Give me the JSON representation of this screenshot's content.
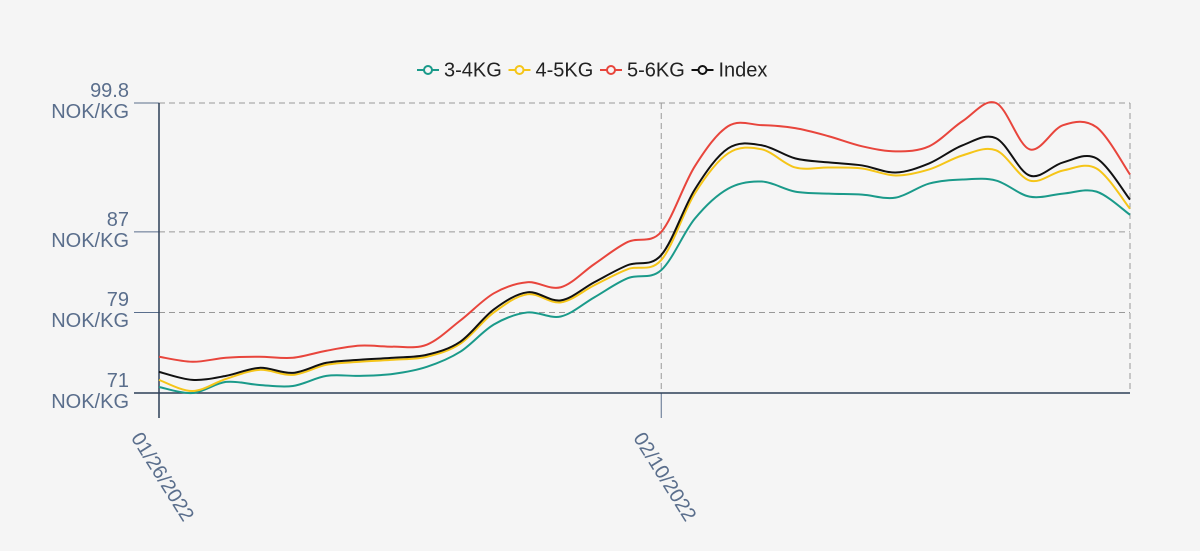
{
  "chart_data": {
    "type": "line",
    "x": [
      "2022-01-26",
      "2022-01-27",
      "2022-01-28",
      "2022-01-29",
      "2022-01-30",
      "2022-01-31",
      "2022-02-01",
      "2022-02-02",
      "2022-02-03",
      "2022-02-04",
      "2022-02-05",
      "2022-02-06",
      "2022-02-07",
      "2022-02-08",
      "2022-02-09",
      "2022-02-10",
      "2022-02-11",
      "2022-02-12",
      "2022-02-13",
      "2022-02-14",
      "2022-02-15",
      "2022-02-16",
      "2022-02-17",
      "2022-02-18",
      "2022-02-19",
      "2022-02-20",
      "2022-02-21",
      "2022-02-22",
      "2022-02-23",
      "2022-02-24"
    ],
    "xlim": [
      "2022-01-26",
      "2022-02-24"
    ],
    "xticks": [
      {
        "value": "2022-01-26",
        "label": "01/26/2022"
      },
      {
        "value": "2022-02-10",
        "label": "02/10/2022"
      }
    ],
    "ylim": [
      71,
      99.8
    ],
    "yticks": [
      {
        "value": 71,
        "label": "71 NOK/KG"
      },
      {
        "value": 79,
        "label": "79 NOK/KG"
      },
      {
        "value": 87,
        "label": "87 NOK/KG"
      },
      {
        "value": 99.8,
        "label": "99.8 NOK/KG"
      }
    ],
    "grid": true,
    "legend": "top",
    "series": [
      {
        "name": "3-4KG",
        "color": "#1a9a8a",
        "values": [
          71.6,
          71.0,
          72.1,
          71.8,
          71.7,
          72.7,
          72.7,
          72.9,
          73.6,
          75.1,
          77.8,
          79.0,
          78.6,
          80.5,
          82.4,
          83.2,
          88.3,
          91.3,
          92.0,
          91.0,
          90.8,
          90.7,
          90.4,
          91.8,
          92.2,
          92.1,
          90.5,
          90.8,
          91.0,
          88.7
        ]
      },
      {
        "name": "4-5KG",
        "color": "#f5c518",
        "values": [
          72.3,
          71.2,
          72.4,
          73.3,
          72.8,
          73.8,
          74.1,
          74.3,
          74.6,
          75.9,
          79.0,
          80.8,
          80.0,
          81.7,
          83.3,
          84.2,
          90.8,
          94.8,
          95.2,
          93.4,
          93.4,
          93.3,
          92.6,
          93.2,
          94.6,
          95.1,
          92.1,
          93.1,
          93.3,
          89.3
        ]
      },
      {
        "name": "5-6KG",
        "color": "#e8453c",
        "values": [
          74.6,
          74.1,
          74.5,
          74.6,
          74.5,
          75.2,
          75.7,
          75.6,
          75.8,
          78.2,
          80.9,
          82.0,
          81.5,
          83.8,
          86.0,
          87.0,
          93.5,
          97.5,
          97.6,
          97.3,
          96.5,
          95.5,
          95.0,
          95.5,
          98.0,
          99.8,
          95.2,
          97.6,
          97.4,
          92.7
        ]
      },
      {
        "name": "Index",
        "color": "#111111",
        "values": [
          73.1,
          72.3,
          72.7,
          73.5,
          73.0,
          74.0,
          74.3,
          74.5,
          74.8,
          76.1,
          79.3,
          81.0,
          80.2,
          82.0,
          83.7,
          84.7,
          91.2,
          95.3,
          95.6,
          94.3,
          93.9,
          93.6,
          92.9,
          93.8,
          95.6,
          96.3,
          92.6,
          93.9,
          94.3,
          90.2
        ]
      }
    ]
  }
}
